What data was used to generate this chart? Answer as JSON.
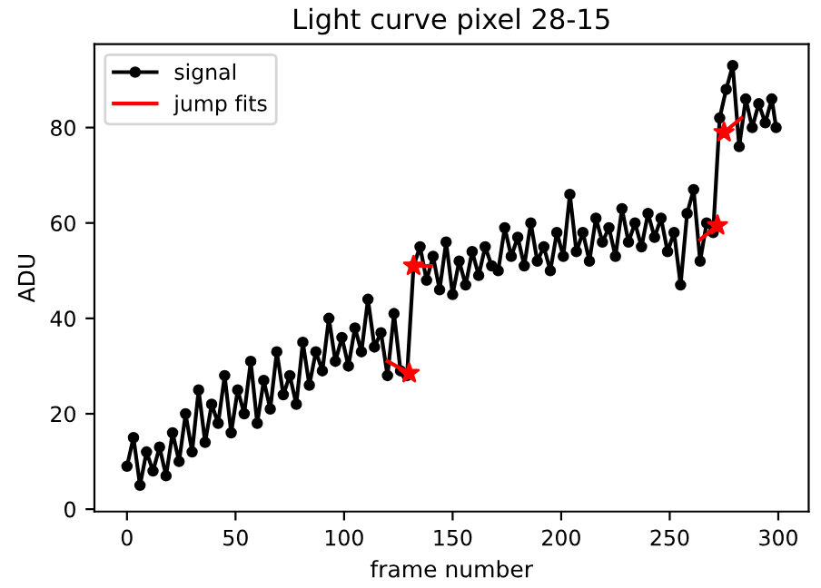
{
  "chart_data": {
    "type": "line",
    "title": "Light curve pixel 28-15",
    "xlabel": "frame number",
    "ylabel": "ADU",
    "xlim": [
      -15,
      314
    ],
    "ylim": [
      -0.5,
      97.5
    ],
    "xticks": [
      0,
      50,
      100,
      150,
      200,
      250,
      300
    ],
    "yticks": [
      0,
      20,
      40,
      60,
      80
    ],
    "grid": false,
    "legend": "top left",
    "series": [
      {
        "name": "signal",
        "color": "#000000",
        "marker": "circle",
        "x": [
          0,
          3,
          6,
          9,
          12,
          15,
          18,
          21,
          24,
          27,
          30,
          33,
          36,
          39,
          42,
          45,
          48,
          51,
          54,
          57,
          60,
          63,
          66,
          69,
          72,
          75,
          78,
          81,
          84,
          87,
          90,
          93,
          96,
          99,
          102,
          105,
          108,
          111,
          114,
          117,
          120,
          123,
          126,
          129,
          132,
          135,
          138,
          141,
          144,
          147,
          150,
          153,
          156,
          159,
          162,
          165,
          168,
          171,
          174,
          177,
          180,
          183,
          186,
          189,
          192,
          195,
          198,
          201,
          204,
          207,
          210,
          213,
          216,
          219,
          222,
          225,
          228,
          231,
          234,
          237,
          240,
          243,
          246,
          249,
          252,
          255,
          258,
          261,
          264,
          267,
          270,
          273,
          276,
          279,
          282,
          285,
          288,
          291,
          294,
          297,
          299
        ],
        "values": [
          9,
          15,
          5,
          12,
          8,
          13,
          7,
          16,
          10,
          20,
          12,
          25,
          14,
          22,
          18,
          28,
          16,
          25,
          20,
          31,
          18,
          27,
          21,
          33,
          24,
          28,
          22,
          35,
          26,
          33,
          29,
          40,
          31,
          36,
          30,
          38,
          33,
          44,
          34,
          37,
          28,
          41,
          29,
          28,
          51,
          55,
          48,
          53,
          46,
          56,
          45,
          52,
          47,
          54,
          49,
          55,
          51,
          50,
          59,
          53,
          57,
          51,
          60,
          52,
          55,
          50,
          58,
          53,
          66,
          54,
          58,
          52,
          61,
          56,
          59,
          53,
          63,
          56,
          60,
          55,
          62,
          57,
          61,
          54,
          58,
          47,
          62,
          67,
          52,
          60,
          58,
          82,
          88,
          93,
          76,
          86,
          80,
          85,
          81,
          86,
          80
        ]
      },
      {
        "name": "jump fits",
        "color": "#ff0000",
        "marker": "none",
        "x": [
          120,
          130
        ],
        "values": [
          31,
          28.5
        ]
      },
      {
        "color": "#ff0000",
        "marker": "none",
        "x": [
          132,
          140
        ],
        "values": [
          51,
          51
        ]
      },
      {
        "color": "#ff0000",
        "marker": "none",
        "x": [
          264,
          272
        ],
        "values": [
          56.5,
          59.5
        ]
      },
      {
        "color": "#ff0000",
        "marker": "none",
        "x": [
          275,
          283
        ],
        "values": [
          79,
          82
        ]
      },
      {
        "type": "scatter",
        "color": "#ff0000",
        "marker": "star",
        "x": [
          130,
          132,
          272,
          275
        ],
        "values": [
          28.5,
          51,
          59.5,
          79
        ]
      }
    ]
  }
}
